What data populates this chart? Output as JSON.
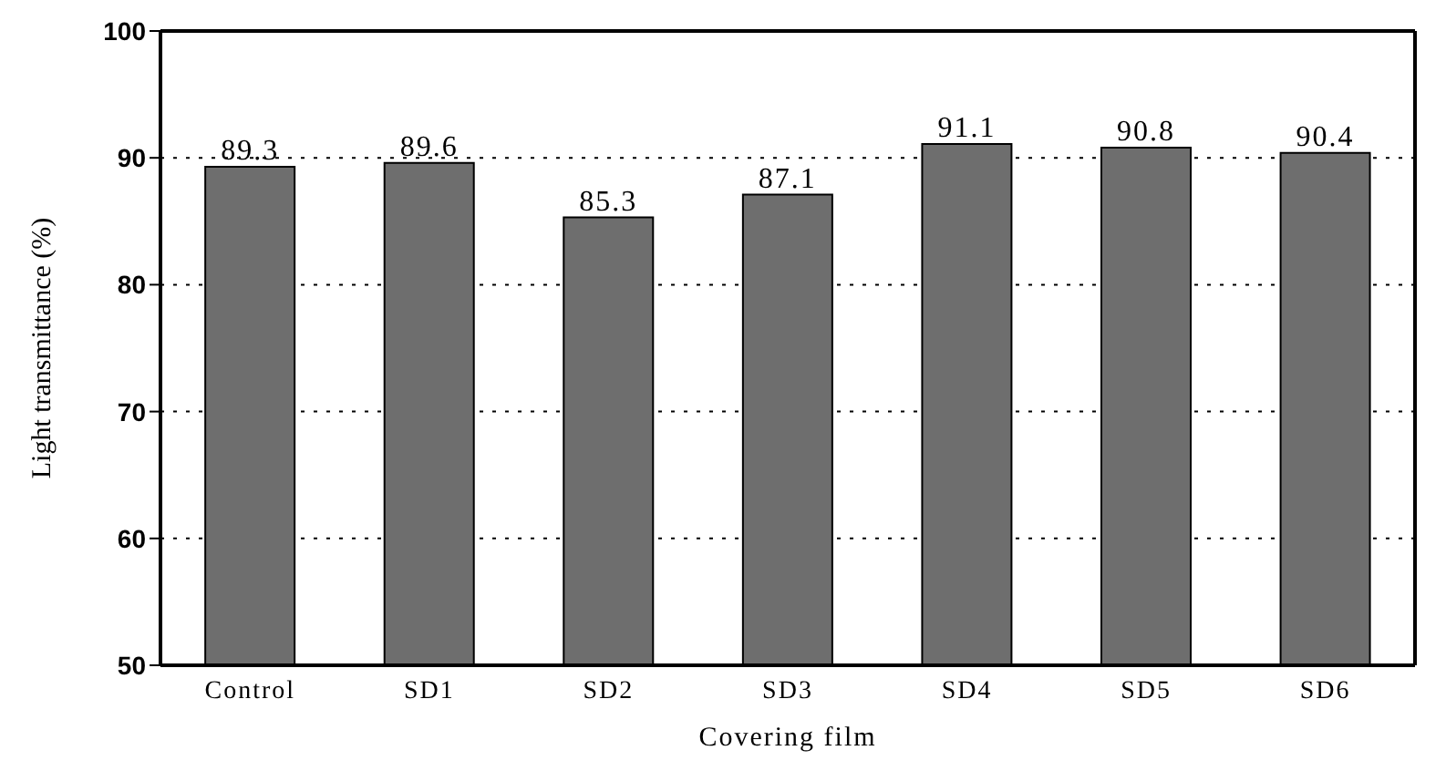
{
  "chart_data": {
    "type": "bar",
    "xlabel": "Covering film",
    "ylabel": "Light transmittance (%)",
    "categories": [
      "Control",
      "SD1",
      "SD2",
      "SD3",
      "SD4",
      "SD5",
      "SD6"
    ],
    "values": [
      89.3,
      89.6,
      85.3,
      87.1,
      91.1,
      90.8,
      90.4
    ],
    "color": "#6e6e6e",
    "ylim": [
      50,
      100
    ],
    "yticks": [
      50,
      60,
      70,
      80,
      90,
      100
    ],
    "grid": "y",
    "data_labels": true
  }
}
